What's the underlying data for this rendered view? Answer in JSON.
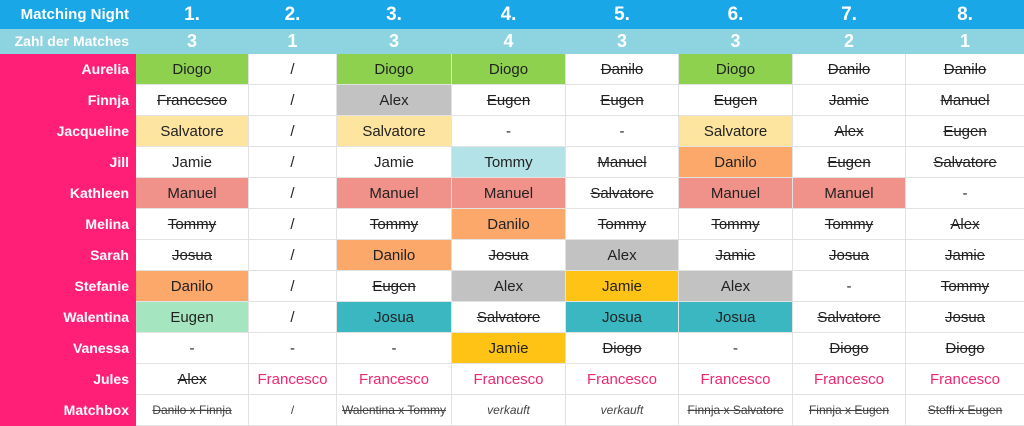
{
  "header": {
    "row_label": "Matching Night",
    "nights": [
      "1.",
      "2.",
      "3.",
      "4.",
      "5.",
      "6.",
      "7.",
      "8."
    ],
    "count_label": "Zahl der Matches",
    "counts": [
      "3",
      "1",
      "3",
      "4",
      "3",
      "3",
      "2",
      "1"
    ]
  },
  "rows": [
    {
      "name": "Aurelia",
      "cells": [
        {
          "text": "Diogo",
          "color": "green"
        },
        {
          "text": "/",
          "color": "none"
        },
        {
          "text": "Diogo",
          "color": "green"
        },
        {
          "text": "Diogo",
          "color": "green"
        },
        {
          "text": "Danilo",
          "color": "none",
          "style": "cross"
        },
        {
          "text": "Diogo",
          "color": "green"
        },
        {
          "text": "Danilo",
          "color": "none",
          "style": "cross"
        },
        {
          "text": "Danilo",
          "color": "none",
          "style": "cross"
        }
      ]
    },
    {
      "name": "Finnja",
      "cells": [
        {
          "text": "Francesco",
          "color": "none",
          "style": "cross"
        },
        {
          "text": "/",
          "color": "none"
        },
        {
          "text": "Alex",
          "color": "gray"
        },
        {
          "text": "Eugen",
          "color": "none",
          "style": "cross"
        },
        {
          "text": "Eugen",
          "color": "none",
          "style": "cross"
        },
        {
          "text": "Eugen",
          "color": "none",
          "style": "cross"
        },
        {
          "text": "Jamie",
          "color": "none",
          "style": "cross"
        },
        {
          "text": "Manuel",
          "color": "none",
          "style": "cross"
        }
      ]
    },
    {
      "name": "Jacqueline",
      "cells": [
        {
          "text": "Salvatore",
          "color": "yellow"
        },
        {
          "text": "/",
          "color": "none"
        },
        {
          "text": "Salvatore",
          "color": "yellow"
        },
        {
          "text": "-",
          "color": "none"
        },
        {
          "text": "-",
          "color": "none"
        },
        {
          "text": "Salvatore",
          "color": "yellow"
        },
        {
          "text": "Alex",
          "color": "none",
          "style": "cross"
        },
        {
          "text": "Eugen",
          "color": "none",
          "style": "cross"
        }
      ]
    },
    {
      "name": "Jill",
      "cells": [
        {
          "text": "Jamie",
          "color": "none"
        },
        {
          "text": "/",
          "color": "none"
        },
        {
          "text": "Jamie",
          "color": "none"
        },
        {
          "text": "Tommy",
          "color": "cyan"
        },
        {
          "text": "Manuel",
          "color": "none",
          "style": "cross"
        },
        {
          "text": "Danilo",
          "color": "orange"
        },
        {
          "text": "Eugen",
          "color": "none",
          "style": "cross"
        },
        {
          "text": "Salvatore",
          "color": "none",
          "style": "cross"
        }
      ]
    },
    {
      "name": "Kathleen",
      "cells": [
        {
          "text": "Manuel",
          "color": "salmon"
        },
        {
          "text": "/",
          "color": "none"
        },
        {
          "text": "Manuel",
          "color": "salmon"
        },
        {
          "text": "Manuel",
          "color": "salmon"
        },
        {
          "text": "Salvatore",
          "color": "none",
          "style": "cross"
        },
        {
          "text": "Manuel",
          "color": "salmon"
        },
        {
          "text": "Manuel",
          "color": "salmon"
        },
        {
          "text": "-",
          "color": "none"
        }
      ]
    },
    {
      "name": "Melina",
      "cells": [
        {
          "text": "Tommy",
          "color": "none",
          "style": "cross"
        },
        {
          "text": "/",
          "color": "none"
        },
        {
          "text": "Tommy",
          "color": "none",
          "style": "cross"
        },
        {
          "text": "Danilo",
          "color": "orange"
        },
        {
          "text": "Tommy",
          "color": "none",
          "style": "cross"
        },
        {
          "text": "Tommy",
          "color": "none",
          "style": "cross"
        },
        {
          "text": "Tommy",
          "color": "none",
          "style": "cross"
        },
        {
          "text": "Alex",
          "color": "none",
          "style": "cross"
        }
      ]
    },
    {
      "name": "Sarah",
      "cells": [
        {
          "text": "Josua",
          "color": "none",
          "style": "cross"
        },
        {
          "text": "/",
          "color": "none"
        },
        {
          "text": "Danilo",
          "color": "orange"
        },
        {
          "text": "Josua",
          "color": "none",
          "style": "cross"
        },
        {
          "text": "Alex",
          "color": "gray"
        },
        {
          "text": "Jamie",
          "color": "none",
          "style": "cross"
        },
        {
          "text": "Josua",
          "color": "none",
          "style": "cross"
        },
        {
          "text": "Jamie",
          "color": "none",
          "style": "cross"
        }
      ]
    },
    {
      "name": "Stefanie",
      "cells": [
        {
          "text": "Danilo",
          "color": "orange"
        },
        {
          "text": "/",
          "color": "none"
        },
        {
          "text": "Eugen",
          "color": "none",
          "style": "cross"
        },
        {
          "text": "Alex",
          "color": "gray"
        },
        {
          "text": "Jamie",
          "color": "amber"
        },
        {
          "text": "Alex",
          "color": "gray"
        },
        {
          "text": "-",
          "color": "none"
        },
        {
          "text": "Tommy",
          "color": "none",
          "style": "cross"
        }
      ]
    },
    {
      "name": "Walentina",
      "cells": [
        {
          "text": "Eugen",
          "color": "mint"
        },
        {
          "text": "/",
          "color": "none"
        },
        {
          "text": "Josua",
          "color": "teal"
        },
        {
          "text": "Salvatore",
          "color": "none",
          "style": "cross"
        },
        {
          "text": "Josua",
          "color": "teal"
        },
        {
          "text": "Josua",
          "color": "teal"
        },
        {
          "text": "Salvatore",
          "color": "none",
          "style": "cross"
        },
        {
          "text": "Josua",
          "color": "none",
          "style": "cross"
        }
      ]
    },
    {
      "name": "Vanessa",
      "cells": [
        {
          "text": "-",
          "color": "none"
        },
        {
          "text": "-",
          "color": "none"
        },
        {
          "text": "-",
          "color": "none"
        },
        {
          "text": "Jamie",
          "color": "amber"
        },
        {
          "text": "Diogo",
          "color": "none",
          "style": "cross"
        },
        {
          "text": "-",
          "color": "none"
        },
        {
          "text": "Diogo",
          "color": "none",
          "style": "cross"
        },
        {
          "text": "Diogo",
          "color": "none",
          "style": "cross"
        }
      ]
    },
    {
      "name": "Jules",
      "cells": [
        {
          "text": "Alex",
          "color": "none",
          "style": "cross"
        },
        {
          "text": "Francesco",
          "color": "none",
          "style": "pink"
        },
        {
          "text": "Francesco",
          "color": "none",
          "style": "pink"
        },
        {
          "text": "Francesco",
          "color": "none",
          "style": "pink"
        },
        {
          "text": "Francesco",
          "color": "none",
          "style": "pink"
        },
        {
          "text": "Francesco",
          "color": "none",
          "style": "pink"
        },
        {
          "text": "Francesco",
          "color": "none",
          "style": "pink"
        },
        {
          "text": "Francesco",
          "color": "none",
          "style": "pink"
        }
      ]
    },
    {
      "name": "Matchbox",
      "cells": [
        {
          "text": "Danilo x Finnja",
          "color": "none",
          "style": "cross-small"
        },
        {
          "text": "/",
          "color": "none",
          "style": "small"
        },
        {
          "text": "Walentina x Tommy",
          "color": "none",
          "style": "cross-small"
        },
        {
          "text": "verkauft",
          "color": "none",
          "style": "italic-small"
        },
        {
          "text": "verkauft",
          "color": "none",
          "style": "italic-small"
        },
        {
          "text": "Finnja x Salvatore",
          "color": "none",
          "style": "cross-small"
        },
        {
          "text": "Finnja x Eugen",
          "color": "none",
          "style": "cross-small"
        },
        {
          "text": "Steffi x Eugen",
          "color": "none",
          "style": "cross-small"
        }
      ]
    }
  ]
}
